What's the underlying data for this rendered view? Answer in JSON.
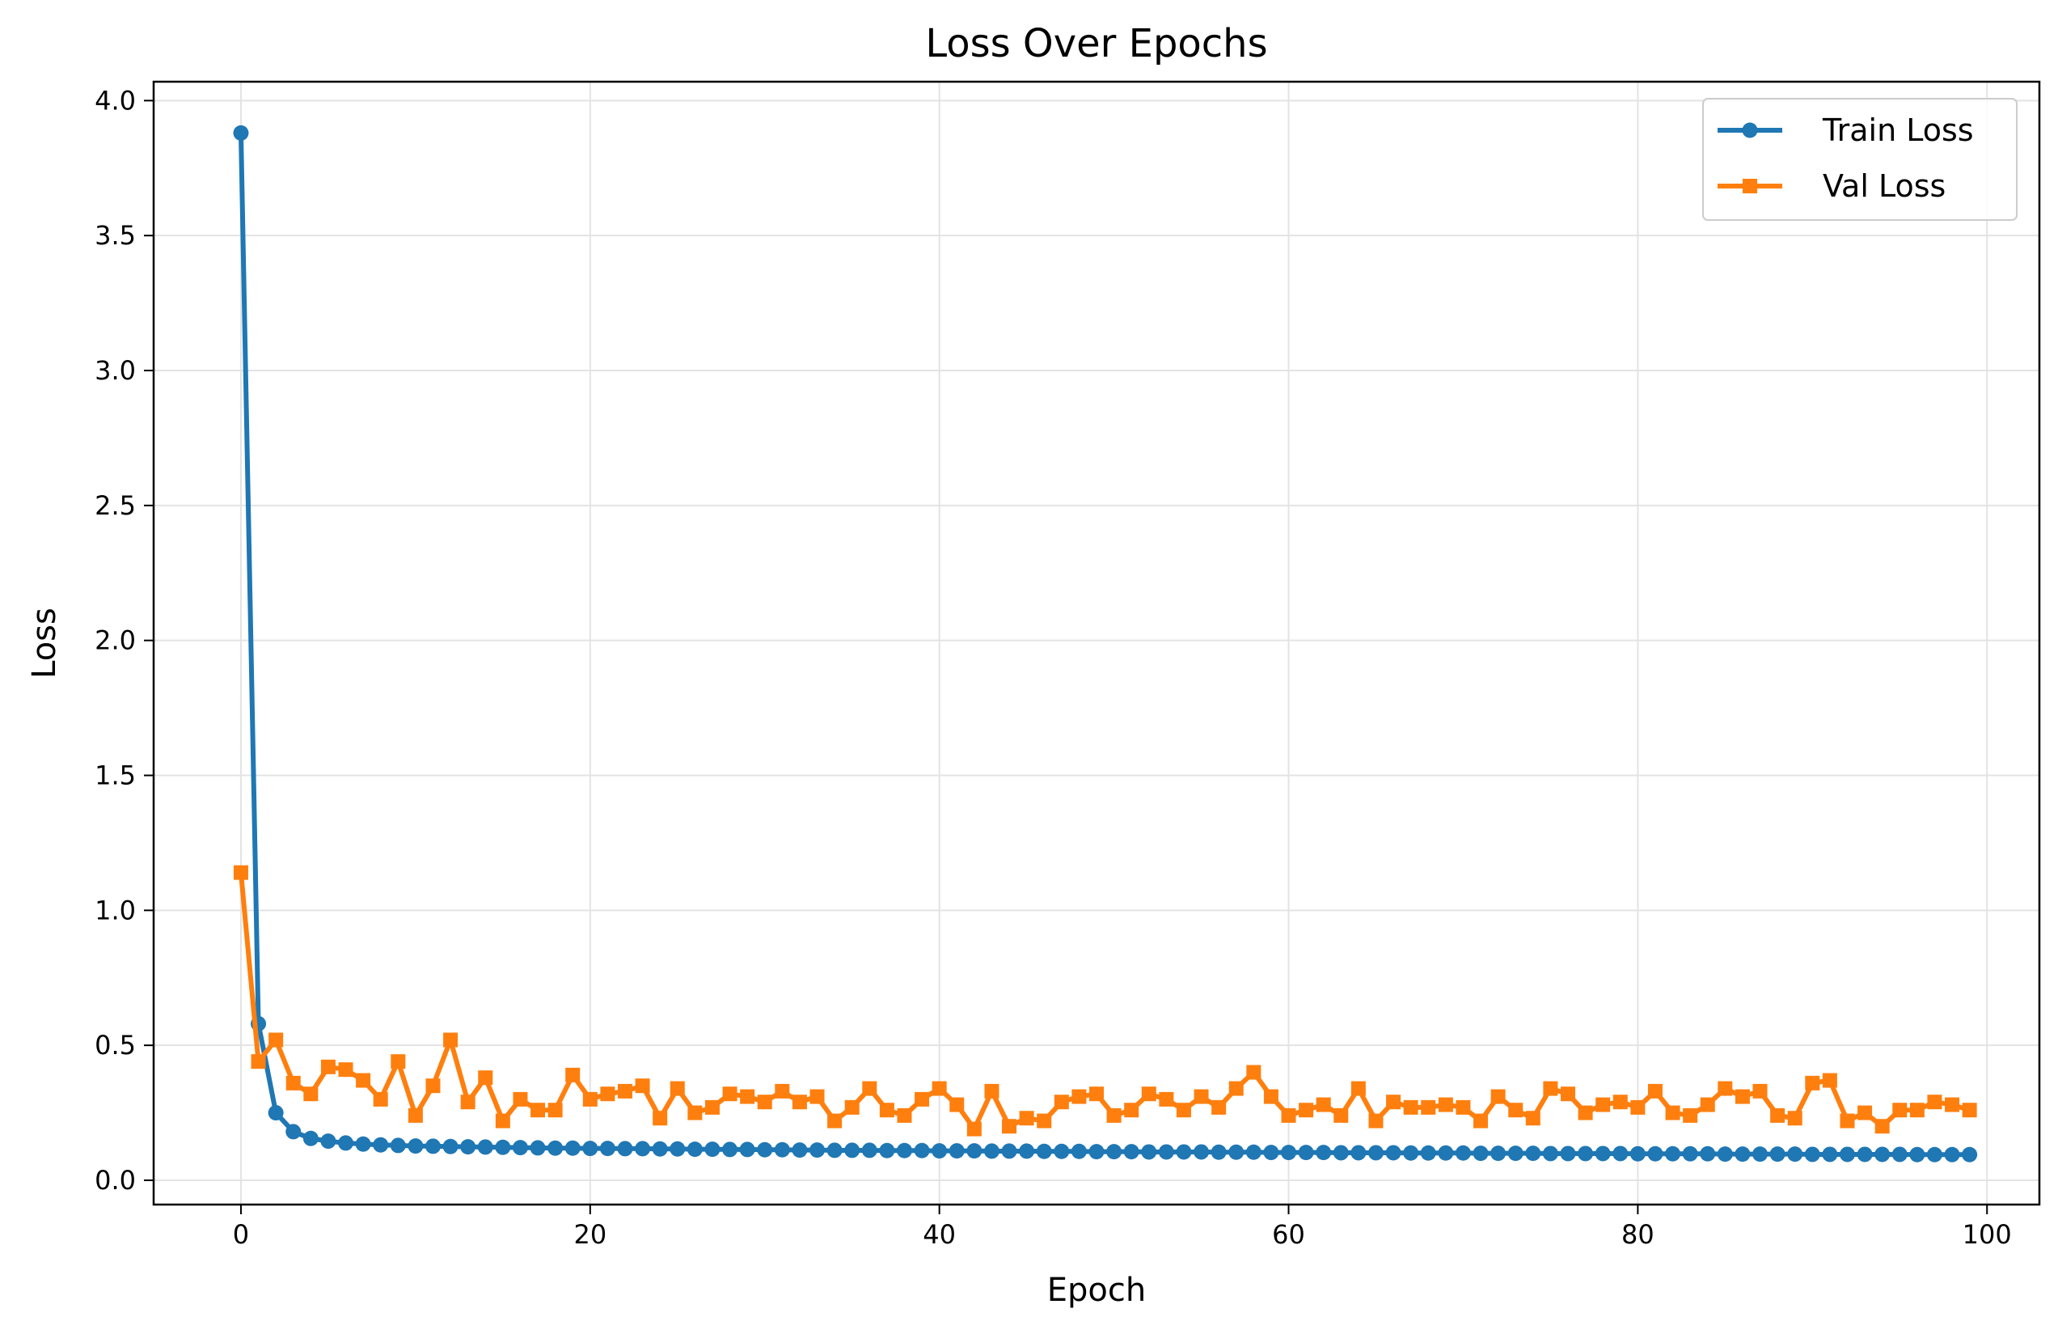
{
  "chart_data": {
    "type": "line",
    "title": "Loss Over Epochs",
    "xlabel": "Epoch",
    "ylabel": "Loss",
    "xlim": [
      -5,
      103
    ],
    "ylim": [
      -0.09,
      4.07
    ],
    "xticks": [
      0,
      20,
      40,
      60,
      80,
      100
    ],
    "yticks": [
      0.0,
      0.5,
      1.0,
      1.5,
      2.0,
      2.5,
      3.0,
      3.5,
      4.0
    ],
    "xtick_labels": [
      "0",
      "20",
      "40",
      "60",
      "80",
      "100"
    ],
    "ytick_labels": [
      "0.0",
      "0.5",
      "1.0",
      "1.5",
      "2.0",
      "2.5",
      "3.0",
      "3.5",
      "4.0"
    ],
    "grid": true,
    "legend_position": "top-right",
    "series": [
      {
        "name": "Train Loss",
        "color": "#1f77b4",
        "marker": "circle",
        "values": [
          3.88,
          0.58,
          0.25,
          0.18,
          0.155,
          0.145,
          0.138,
          0.134,
          0.131,
          0.129,
          0.127,
          0.126,
          0.125,
          0.124,
          0.123,
          0.122,
          0.121,
          0.12,
          0.119,
          0.119,
          0.118,
          0.118,
          0.117,
          0.117,
          0.116,
          0.116,
          0.115,
          0.115,
          0.114,
          0.114,
          0.113,
          0.113,
          0.112,
          0.112,
          0.111,
          0.111,
          0.111,
          0.11,
          0.11,
          0.11,
          0.109,
          0.109,
          0.109,
          0.108,
          0.108,
          0.108,
          0.107,
          0.107,
          0.107,
          0.106,
          0.106,
          0.106,
          0.105,
          0.105,
          0.105,
          0.105,
          0.104,
          0.104,
          0.104,
          0.103,
          0.103,
          0.103,
          0.103,
          0.102,
          0.102,
          0.102,
          0.102,
          0.101,
          0.101,
          0.101,
          0.101,
          0.1,
          0.1,
          0.1,
          0.1,
          0.099,
          0.099,
          0.099,
          0.099,
          0.099,
          0.098,
          0.098,
          0.098,
          0.098,
          0.098,
          0.097,
          0.097,
          0.097,
          0.097,
          0.097,
          0.096,
          0.096,
          0.096,
          0.096,
          0.096,
          0.096,
          0.095,
          0.095,
          0.095,
          0.095
        ]
      },
      {
        "name": "Val Loss",
        "color": "#ff7f0e",
        "marker": "square",
        "values": [
          1.14,
          0.44,
          0.52,
          0.36,
          0.32,
          0.42,
          0.41,
          0.37,
          0.3,
          0.44,
          0.24,
          0.35,
          0.52,
          0.29,
          0.38,
          0.22,
          0.3,
          0.26,
          0.26,
          0.39,
          0.3,
          0.32,
          0.33,
          0.35,
          0.23,
          0.34,
          0.25,
          0.27,
          0.32,
          0.31,
          0.29,
          0.33,
          0.29,
          0.31,
          0.22,
          0.27,
          0.34,
          0.26,
          0.24,
          0.3,
          0.34,
          0.28,
          0.19,
          0.33,
          0.2,
          0.23,
          0.22,
          0.29,
          0.31,
          0.32,
          0.24,
          0.26,
          0.32,
          0.3,
          0.26,
          0.31,
          0.27,
          0.34,
          0.4,
          0.31,
          0.24,
          0.26,
          0.28,
          0.24,
          0.34,
          0.22,
          0.29,
          0.27,
          0.27,
          0.28,
          0.27,
          0.22,
          0.31,
          0.26,
          0.23,
          0.34,
          0.32,
          0.25,
          0.28,
          0.29,
          0.27,
          0.33,
          0.25,
          0.24,
          0.28,
          0.34,
          0.31,
          0.33,
          0.24,
          0.23,
          0.36,
          0.37,
          0.22,
          0.25,
          0.2,
          0.26,
          0.26,
          0.29,
          0.28,
          0.26
        ]
      }
    ]
  }
}
